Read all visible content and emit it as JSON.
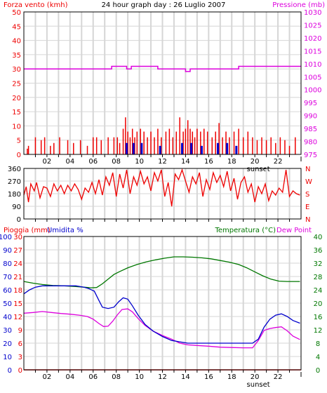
{
  "title": "24 hour graph day : 26 Luglio 2007",
  "colors": {
    "red": "#ee0000",
    "magenta": "#dd00dd",
    "blue": "#0000cc",
    "green": "#007700",
    "grid": "#d6d6d6",
    "frame": "#000000"
  },
  "chart_data": [
    {
      "type": "bar",
      "left_label": "Forza vento (kmh)",
      "right_label": "Pressione (mb)",
      "x_ticks": [
        "02",
        "04",
        "06",
        "08",
        "10",
        "12",
        "14",
        "16",
        "18",
        "20",
        "22"
      ],
      "x_range": [
        0,
        24
      ],
      "xlim": [
        0,
        24
      ],
      "sunset_label": "sunset",
      "sunset_x": 20.3,
      "ylim_left": [
        0,
        50
      ],
      "yticks_left": [
        "0",
        "5",
        "10",
        "15",
        "20",
        "25",
        "30",
        "35",
        "40",
        "45",
        "50"
      ],
      "ylim_right": [
        975,
        1030
      ],
      "yticks_right": [
        "975",
        "980",
        "985",
        "990",
        "995",
        "1000",
        "1005",
        "1010",
        "1015",
        "1020",
        "1025",
        "1030"
      ],
      "wind_speed_series": [
        {
          "x": 0.3,
          "v": 2
        },
        {
          "x": 0.4,
          "v": 3
        },
        {
          "x": 1.0,
          "v": 6
        },
        {
          "x": 1.5,
          "v": 5
        },
        {
          "x": 1.8,
          "v": 6
        },
        {
          "x": 2.3,
          "v": 3
        },
        {
          "x": 2.6,
          "v": 4
        },
        {
          "x": 3.1,
          "v": 6
        },
        {
          "x": 3.8,
          "v": 5
        },
        {
          "x": 4.3,
          "v": 4
        },
        {
          "x": 4.9,
          "v": 5
        },
        {
          "x": 5.5,
          "v": 3
        },
        {
          "x": 6.0,
          "v": 6
        },
        {
          "x": 6.3,
          "v": 6
        },
        {
          "x": 6.7,
          "v": 5
        },
        {
          "x": 7.3,
          "v": 6
        },
        {
          "x": 7.8,
          "v": 6
        },
        {
          "x": 8.1,
          "v": 6
        },
        {
          "x": 8.3,
          "v": 4
        },
        {
          "x": 8.6,
          "v": 9
        },
        {
          "x": 8.8,
          "v": 13
        },
        {
          "x": 9.0,
          "v": 8
        },
        {
          "x": 9.2,
          "v": 6
        },
        {
          "x": 9.4,
          "v": 9
        },
        {
          "x": 9.6,
          "v": 6
        },
        {
          "x": 9.8,
          "v": 8
        },
        {
          "x": 10.1,
          "v": 9
        },
        {
          "x": 10.4,
          "v": 8
        },
        {
          "x": 10.7,
          "v": 6
        },
        {
          "x": 11.0,
          "v": 8
        },
        {
          "x": 11.3,
          "v": 6
        },
        {
          "x": 11.6,
          "v": 9
        },
        {
          "x": 11.9,
          "v": 6
        },
        {
          "x": 12.3,
          "v": 8
        },
        {
          "x": 12.6,
          "v": 9
        },
        {
          "x": 12.9,
          "v": 6
        },
        {
          "x": 13.2,
          "v": 8
        },
        {
          "x": 13.5,
          "v": 13
        },
        {
          "x": 13.8,
          "v": 8
        },
        {
          "x": 14.0,
          "v": 9
        },
        {
          "x": 14.2,
          "v": 12
        },
        {
          "x": 14.4,
          "v": 9
        },
        {
          "x": 14.6,
          "v": 8
        },
        {
          "x": 14.8,
          "v": 6
        },
        {
          "x": 15.0,
          "v": 9
        },
        {
          "x": 15.3,
          "v": 8
        },
        {
          "x": 15.6,
          "v": 9
        },
        {
          "x": 15.9,
          "v": 8
        },
        {
          "x": 16.3,
          "v": 6
        },
        {
          "x": 16.6,
          "v": 8
        },
        {
          "x": 16.9,
          "v": 11
        },
        {
          "x": 17.2,
          "v": 6
        },
        {
          "x": 17.5,
          "v": 8
        },
        {
          "x": 17.8,
          "v": 6
        },
        {
          "x": 18.2,
          "v": 8
        },
        {
          "x": 18.6,
          "v": 9
        },
        {
          "x": 19.0,
          "v": 6
        },
        {
          "x": 19.4,
          "v": 8
        },
        {
          "x": 19.8,
          "v": 6
        },
        {
          "x": 20.2,
          "v": 5
        },
        {
          "x": 20.6,
          "v": 6
        },
        {
          "x": 21.0,
          "v": 5
        },
        {
          "x": 21.4,
          "v": 6
        },
        {
          "x": 21.8,
          "v": 4
        },
        {
          "x": 22.2,
          "v": 6
        },
        {
          "x": 22.6,
          "v": 5
        },
        {
          "x": 23.0,
          "v": 3
        },
        {
          "x": 23.5,
          "v": 6
        }
      ],
      "wind_gust_series": [
        {
          "x": 8.9,
          "v": 4
        },
        {
          "x": 9.5,
          "v": 4
        },
        {
          "x": 10.2,
          "v": 4
        },
        {
          "x": 11.8,
          "v": 3
        },
        {
          "x": 13.7,
          "v": 4
        },
        {
          "x": 14.5,
          "v": 4
        },
        {
          "x": 15.4,
          "v": 3
        },
        {
          "x": 16.8,
          "v": 4
        },
        {
          "x": 17.6,
          "v": 4
        },
        {
          "x": 18.4,
          "v": 3
        }
      ],
      "pressure_series": [
        {
          "x": 0,
          "v": 1008
        },
        {
          "x": 7.6,
          "v": 1008
        },
        {
          "x": 7.6,
          "v": 1009
        },
        {
          "x": 8.9,
          "v": 1009
        },
        {
          "x": 8.9,
          "v": 1008
        },
        {
          "x": 9.3,
          "v": 1008
        },
        {
          "x": 9.3,
          "v": 1009
        },
        {
          "x": 11.6,
          "v": 1009
        },
        {
          "x": 11.6,
          "v": 1008
        },
        {
          "x": 14.0,
          "v": 1008
        },
        {
          "x": 14.0,
          "v": 1007
        },
        {
          "x": 14.4,
          "v": 1007
        },
        {
          "x": 14.4,
          "v": 1008
        },
        {
          "x": 18.6,
          "v": 1008
        },
        {
          "x": 18.6,
          "v": 1009
        },
        {
          "x": 24,
          "v": 1009
        }
      ]
    },
    {
      "type": "line",
      "right_labels": [
        "N",
        "W",
        "S",
        "E",
        "N"
      ],
      "yticks_left": [
        "0",
        "90",
        "180",
        "270",
        "360"
      ],
      "ylim": [
        0,
        360
      ],
      "wind_direction_series": [
        {
          "x": 0.0,
          "v": 170
        },
        {
          "x": 0.2,
          "v": 230
        },
        {
          "x": 0.4,
          "v": 120
        },
        {
          "x": 0.6,
          "v": 250
        },
        {
          "x": 0.9,
          "v": 200
        },
        {
          "x": 1.1,
          "v": 260
        },
        {
          "x": 1.4,
          "v": 150
        },
        {
          "x": 1.7,
          "v": 230
        },
        {
          "x": 2.0,
          "v": 220
        },
        {
          "x": 2.3,
          "v": 160
        },
        {
          "x": 2.6,
          "v": 250
        },
        {
          "x": 2.9,
          "v": 200
        },
        {
          "x": 3.2,
          "v": 240
        },
        {
          "x": 3.5,
          "v": 180
        },
        {
          "x": 3.8,
          "v": 240
        },
        {
          "x": 4.1,
          "v": 200
        },
        {
          "x": 4.4,
          "v": 250
        },
        {
          "x": 4.7,
          "v": 210
        },
        {
          "x": 5.0,
          "v": 140
        },
        {
          "x": 5.3,
          "v": 220
        },
        {
          "x": 5.6,
          "v": 190
        },
        {
          "x": 5.9,
          "v": 260
        },
        {
          "x": 6.2,
          "v": 180
        },
        {
          "x": 6.5,
          "v": 280
        },
        {
          "x": 6.8,
          "v": 170
        },
        {
          "x": 7.1,
          "v": 300
        },
        {
          "x": 7.4,
          "v": 240
        },
        {
          "x": 7.7,
          "v": 330
        },
        {
          "x": 8.0,
          "v": 160
        },
        {
          "x": 8.3,
          "v": 320
        },
        {
          "x": 8.6,
          "v": 220
        },
        {
          "x": 8.9,
          "v": 350
        },
        {
          "x": 9.2,
          "v": 180
        },
        {
          "x": 9.5,
          "v": 300
        },
        {
          "x": 9.8,
          "v": 240
        },
        {
          "x": 10.1,
          "v": 340
        },
        {
          "x": 10.4,
          "v": 250
        },
        {
          "x": 10.7,
          "v": 300
        },
        {
          "x": 11.0,
          "v": 200
        },
        {
          "x": 11.3,
          "v": 330
        },
        {
          "x": 11.6,
          "v": 270
        },
        {
          "x": 11.9,
          "v": 350
        },
        {
          "x": 12.2,
          "v": 160
        },
        {
          "x": 12.5,
          "v": 260
        },
        {
          "x": 12.8,
          "v": 90
        },
        {
          "x": 13.1,
          "v": 320
        },
        {
          "x": 13.4,
          "v": 280
        },
        {
          "x": 13.7,
          "v": 350
        },
        {
          "x": 14.0,
          "v": 270
        },
        {
          "x": 14.3,
          "v": 190
        },
        {
          "x": 14.6,
          "v": 300
        },
        {
          "x": 14.9,
          "v": 250
        },
        {
          "x": 15.2,
          "v": 330
        },
        {
          "x": 15.5,
          "v": 160
        },
        {
          "x": 15.8,
          "v": 280
        },
        {
          "x": 16.1,
          "v": 210
        },
        {
          "x": 16.4,
          "v": 330
        },
        {
          "x": 16.7,
          "v": 260
        },
        {
          "x": 17.0,
          "v": 310
        },
        {
          "x": 17.3,
          "v": 230
        },
        {
          "x": 17.6,
          "v": 340
        },
        {
          "x": 17.9,
          "v": 200
        },
        {
          "x": 18.2,
          "v": 290
        },
        {
          "x": 18.5,
          "v": 140
        },
        {
          "x": 18.8,
          "v": 260
        },
        {
          "x": 19.1,
          "v": 300
        },
        {
          "x": 19.4,
          "v": 190
        },
        {
          "x": 19.7,
          "v": 250
        },
        {
          "x": 20.0,
          "v": 120
        },
        {
          "x": 20.3,
          "v": 230
        },
        {
          "x": 20.6,
          "v": 180
        },
        {
          "x": 20.9,
          "v": 250
        },
        {
          "x": 21.2,
          "v": 130
        },
        {
          "x": 21.5,
          "v": 200
        },
        {
          "x": 21.8,
          "v": 170
        },
        {
          "x": 22.1,
          "v": 220
        },
        {
          "x": 22.4,
          "v": 190
        },
        {
          "x": 22.7,
          "v": 350
        },
        {
          "x": 23.0,
          "v": 160
        },
        {
          "x": 23.3,
          "v": 200
        },
        {
          "x": 23.6,
          "v": 180
        },
        {
          "x": 23.9,
          "v": 170
        }
      ]
    },
    {
      "type": "line",
      "left_labels": [
        "Pioggia (mm)",
        "Umidita %"
      ],
      "right_labels": [
        "Temperatura (°C)",
        "Dew Point"
      ],
      "yticks_rain": [
        "0",
        "3",
        "6",
        "9",
        "12",
        "15",
        "18",
        "21",
        "24",
        "27",
        "30"
      ],
      "yticks_humidity": [
        "0",
        "10",
        "20",
        "30",
        "40",
        "50",
        "60",
        "70",
        "80",
        "90",
        "100"
      ],
      "yticks_temp": [
        "0",
        "4",
        "8",
        "12",
        "16",
        "20",
        "24",
        "28",
        "32",
        "36",
        "40"
      ],
      "ylim_humidity": [
        0,
        100
      ],
      "ylim_temp": [
        0,
        40
      ],
      "rain_series": [
        {
          "x": 0,
          "v": 0
        },
        {
          "x": 24,
          "v": 0
        }
      ],
      "humidity_series": [
        {
          "x": 0.0,
          "v": 57
        },
        {
          "x": 0.5,
          "v": 60
        },
        {
          "x": 1.0,
          "v": 62
        },
        {
          "x": 1.6,
          "v": 63
        },
        {
          "x": 2.5,
          "v": 63
        },
        {
          "x": 3.5,
          "v": 63
        },
        {
          "x": 4.5,
          "v": 63
        },
        {
          "x": 5.2,
          "v": 62
        },
        {
          "x": 5.6,
          "v": 61
        },
        {
          "x": 6.1,
          "v": 59
        },
        {
          "x": 6.5,
          "v": 52
        },
        {
          "x": 6.8,
          "v": 47
        },
        {
          "x": 7.3,
          "v": 46
        },
        {
          "x": 7.8,
          "v": 47
        },
        {
          "x": 8.2,
          "v": 51
        },
        {
          "x": 8.6,
          "v": 54
        },
        {
          "x": 9.0,
          "v": 53
        },
        {
          "x": 9.4,
          "v": 48
        },
        {
          "x": 9.9,
          "v": 41
        },
        {
          "x": 10.5,
          "v": 34
        },
        {
          "x": 11.2,
          "v": 29
        },
        {
          "x": 12.0,
          "v": 25
        },
        {
          "x": 12.8,
          "v": 22
        },
        {
          "x": 13.5,
          "v": 21
        },
        {
          "x": 14.2,
          "v": 20
        },
        {
          "x": 15.0,
          "v": 20
        },
        {
          "x": 16.0,
          "v": 20
        },
        {
          "x": 17.0,
          "v": 20
        },
        {
          "x": 18.0,
          "v": 20
        },
        {
          "x": 19.0,
          "v": 20
        },
        {
          "x": 19.8,
          "v": 20
        },
        {
          "x": 20.3,
          "v": 23
        },
        {
          "x": 20.8,
          "v": 32
        },
        {
          "x": 21.3,
          "v": 38
        },
        {
          "x": 21.8,
          "v": 41
        },
        {
          "x": 22.3,
          "v": 42
        },
        {
          "x": 22.8,
          "v": 40
        },
        {
          "x": 23.3,
          "v": 37
        },
        {
          "x": 23.9,
          "v": 35
        }
      ],
      "temperature_series": [
        {
          "x": 0.0,
          "v": 26.5
        },
        {
          "x": 0.8,
          "v": 26.0
        },
        {
          "x": 1.6,
          "v": 25.6
        },
        {
          "x": 2.5,
          "v": 25.3
        },
        {
          "x": 3.5,
          "v": 25.2
        },
        {
          "x": 4.5,
          "v": 25.0
        },
        {
          "x": 5.2,
          "v": 24.8
        },
        {
          "x": 5.8,
          "v": 24.6
        },
        {
          "x": 6.3,
          "v": 24.7
        },
        {
          "x": 6.8,
          "v": 25.8
        },
        {
          "x": 7.3,
          "v": 27.2
        },
        {
          "x": 7.8,
          "v": 28.6
        },
        {
          "x": 8.3,
          "v": 29.5
        },
        {
          "x": 9.0,
          "v": 30.6
        },
        {
          "x": 9.8,
          "v": 31.6
        },
        {
          "x": 10.6,
          "v": 32.4
        },
        {
          "x": 11.4,
          "v": 33.0
        },
        {
          "x": 12.2,
          "v": 33.5
        },
        {
          "x": 13.0,
          "v": 33.9
        },
        {
          "x": 13.8,
          "v": 33.9
        },
        {
          "x": 14.6,
          "v": 33.8
        },
        {
          "x": 15.4,
          "v": 33.6
        },
        {
          "x": 16.2,
          "v": 33.3
        },
        {
          "x": 17.0,
          "v": 32.8
        },
        {
          "x": 17.8,
          "v": 32.3
        },
        {
          "x": 18.6,
          "v": 31.6
        },
        {
          "x": 19.3,
          "v": 30.6
        },
        {
          "x": 20.0,
          "v": 29.4
        },
        {
          "x": 20.7,
          "v": 28.2
        },
        {
          "x": 21.4,
          "v": 27.2
        },
        {
          "x": 22.1,
          "v": 26.6
        },
        {
          "x": 22.8,
          "v": 26.5
        },
        {
          "x": 23.5,
          "v": 26.5
        },
        {
          "x": 23.9,
          "v": 26.5
        }
      ],
      "dewpoint_series": [
        {
          "x": 0.0,
          "v": 17.0
        },
        {
          "x": 0.8,
          "v": 17.2
        },
        {
          "x": 1.6,
          "v": 17.5
        },
        {
          "x": 2.4,
          "v": 17.2
        },
        {
          "x": 3.2,
          "v": 16.9
        },
        {
          "x": 4.0,
          "v": 16.7
        },
        {
          "x": 4.8,
          "v": 16.4
        },
        {
          "x": 5.5,
          "v": 16.0
        },
        {
          "x": 6.0,
          "v": 15.2
        },
        {
          "x": 6.5,
          "v": 13.9
        },
        {
          "x": 6.9,
          "v": 13.0
        },
        {
          "x": 7.3,
          "v": 13.1
        },
        {
          "x": 7.7,
          "v": 14.6
        },
        {
          "x": 8.1,
          "v": 16.5
        },
        {
          "x": 8.5,
          "v": 18.1
        },
        {
          "x": 9.0,
          "v": 18.3
        },
        {
          "x": 9.4,
          "v": 17.4
        },
        {
          "x": 9.9,
          "v": 15.4
        },
        {
          "x": 10.5,
          "v": 13.3
        },
        {
          "x": 11.2,
          "v": 11.6
        },
        {
          "x": 12.0,
          "v": 10.3
        },
        {
          "x": 12.8,
          "v": 9.2
        },
        {
          "x": 13.5,
          "v": 8.0
        },
        {
          "x": 14.2,
          "v": 7.5
        },
        {
          "x": 15.0,
          "v": 7.3
        },
        {
          "x": 16.0,
          "v": 7.1
        },
        {
          "x": 17.0,
          "v": 6.8
        },
        {
          "x": 18.0,
          "v": 6.7
        },
        {
          "x": 19.0,
          "v": 6.6
        },
        {
          "x": 19.8,
          "v": 6.6
        },
        {
          "x": 20.3,
          "v": 8.8
        },
        {
          "x": 20.8,
          "v": 11.8
        },
        {
          "x": 21.3,
          "v": 12.4
        },
        {
          "x": 21.8,
          "v": 12.7
        },
        {
          "x": 22.3,
          "v": 12.9
        },
        {
          "x": 22.8,
          "v": 11.7
        },
        {
          "x": 23.3,
          "v": 10.1
        },
        {
          "x": 23.9,
          "v": 9.1
        }
      ]
    }
  ]
}
